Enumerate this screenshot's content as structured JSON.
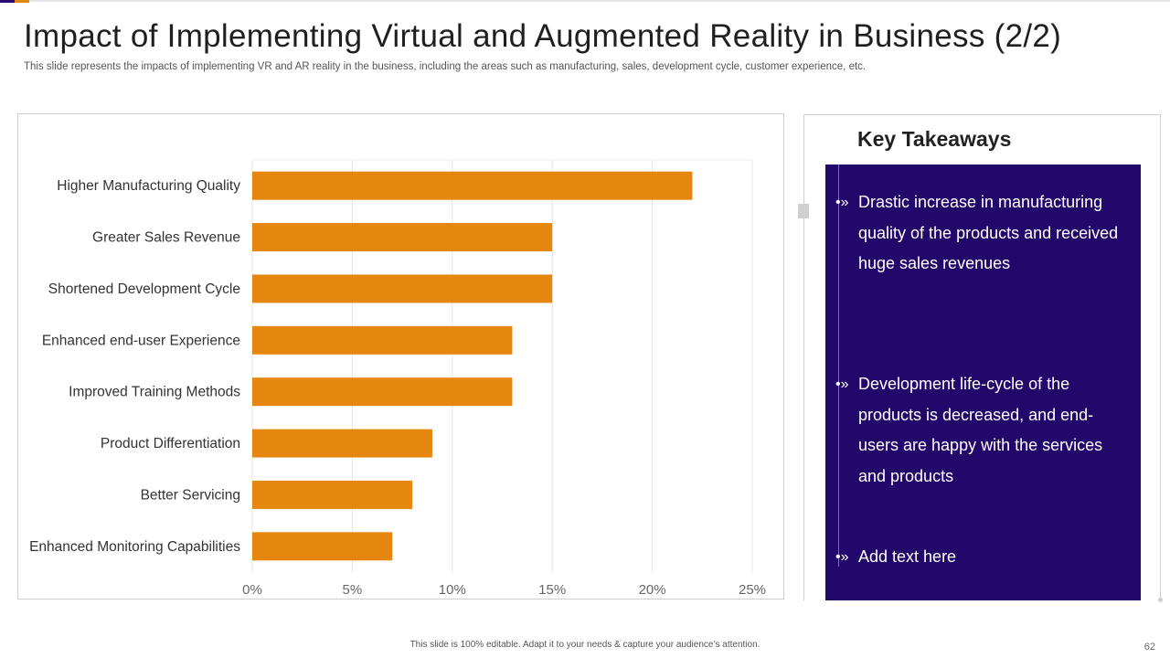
{
  "slide": {
    "title": "Impact of Implementing Virtual and Augmented Reality in Business (2/2)",
    "subtitle": "This slide represents the impacts of implementing VR and AR reality in the business, including the areas such as manufacturing, sales, development cycle, customer experience, etc.",
    "footer": "This slide is 100% editable.  Adapt it to your needs & capture your audience’s attention.",
    "page_number": "62"
  },
  "colors": {
    "bar": "#E5860F",
    "panel": "#23086C",
    "accent_purple": "#2A0A6E"
  },
  "chart_data": {
    "type": "bar",
    "orientation": "horizontal",
    "categories": [
      "Higher Manufacturing Quality",
      "Greater Sales Revenue",
      "Shortened Development Cycle",
      "Enhanced end-user Experience",
      "Improved Training Methods",
      "Product Differentiation",
      "Better Servicing",
      "Enhanced Monitoring Capabilities"
    ],
    "values": [
      22,
      15,
      15,
      13,
      13,
      9,
      8,
      7
    ],
    "value_unit": "%",
    "xlim": [
      0,
      25
    ],
    "x_ticks": [
      0,
      5,
      10,
      15,
      20,
      25
    ],
    "x_tick_labels": [
      "0%",
      "5%",
      "10%",
      "15%",
      "20%",
      "25%"
    ],
    "grid": "vertical",
    "legend": "none"
  },
  "takeaways": {
    "title": "Key Takeaways",
    "bullet_glyph": "•»",
    "items": [
      "Drastic increase in manufacturing quality of the products and received huge sales revenues",
      "Development life-cycle of the products is decreased, and end-users are happy with the services and products",
      "Add text here"
    ]
  }
}
